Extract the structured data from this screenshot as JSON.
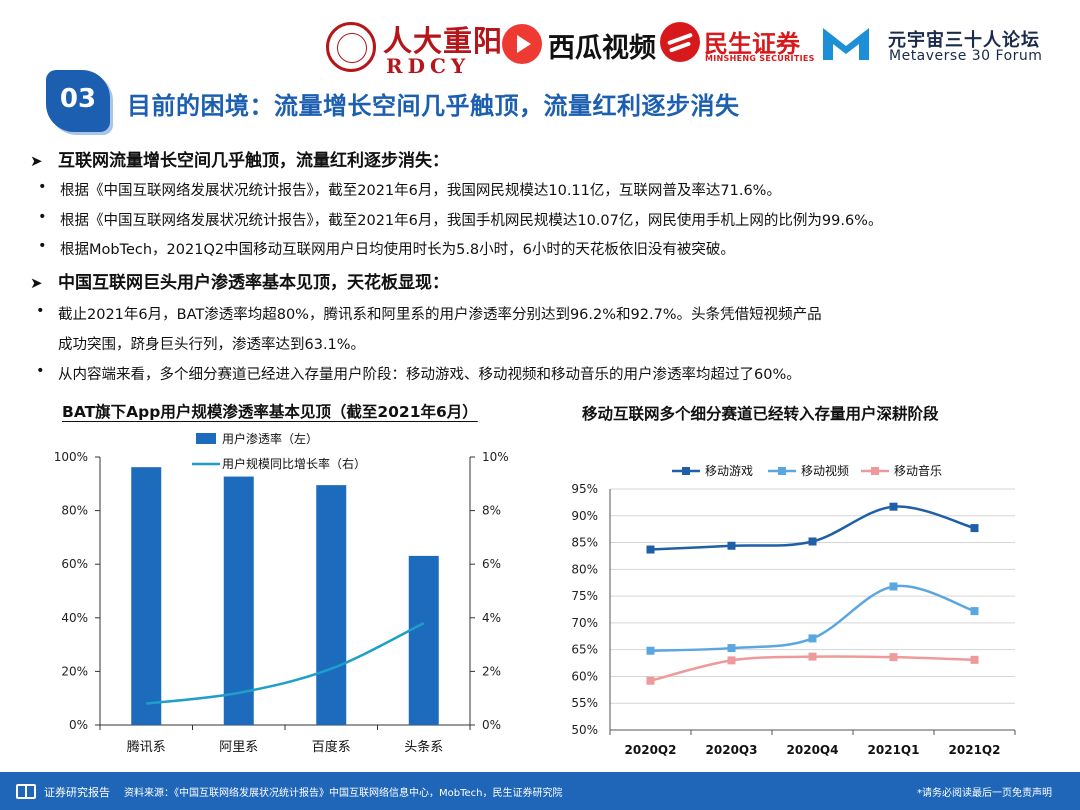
{
  "logos": {
    "rdcy_cn": "人大重阳",
    "rdcy_en": "RDCY",
    "xigua": "西瓜视频",
    "minsheng_cn": "民生证券",
    "minsheng_en": "MINSHENG SECURITIES",
    "forum_cn": "元宇宙三十人论坛",
    "forum_en": "Metaverse 30 Forum"
  },
  "section_number": "03",
  "title": "目前的困境：流量增长空间几乎触顶，流量红利逐步消失",
  "sections": [
    {
      "heading": "互联网流量增长空间几乎触顶，流量红利逐步消失：",
      "bullets": [
        "根据《中国互联网络发展状况统计报告》，截至2021年6月，我国网民规模达10.11亿，互联网普及率达71.6%。",
        "根据《中国互联网络发展状况统计报告》，截至2021年6月，我国手机网民规模达10.07亿，网民使用手机上网的比例为99.6%。",
        "根据MobTech，2021Q2中国移动互联网用户日均使用时长为5.8小时，6小时的天花板依旧没有被突破。"
      ]
    },
    {
      "heading": "中国互联网巨头用户渗透率基本见顶，天花板显现：",
      "bullets": [
        "截止2021年6月，BAT渗透率均超80%，腾讯系和阿里系的用户渗透率分别达到96.2%和92.7%。头条凭借短视频产品",
        "成功突围，跻身巨头行列，渗透率达到63.1%。",
        "从内容端来看，多个细分赛道已经进入存量用户阶段：移动游戏、移动视频和移动音乐的用户渗透率均超过了60%。"
      ]
    }
  ],
  "chart_data": [
    {
      "type": "bar",
      "title": "BAT旗下App用户规模渗透率基本见顶（截至2021年6月）",
      "categories": [
        "腾讯系",
        "阿里系",
        "百度系",
        "头条系"
      ],
      "series": [
        {
          "name": "用户渗透率（左）",
          "type": "bar",
          "axis": "left",
          "values": [
            96.2,
            92.7,
            89.5,
            63.1
          ],
          "color": "#1c6bbd"
        },
        {
          "name": "用户规模同比增长率（右）",
          "type": "line",
          "axis": "right",
          "values": [
            0.8,
            1.2,
            2.1,
            3.8
          ],
          "color": "#1f9fc8"
        }
      ],
      "y_left": {
        "range": [
          0,
          100
        ],
        "ticks": [
          "0%",
          "20%",
          "40%",
          "60%",
          "80%",
          "100%"
        ]
      },
      "y_right": {
        "range": [
          0,
          10
        ],
        "ticks": [
          "0%",
          "2%",
          "4%",
          "6%",
          "8%",
          "10%"
        ]
      },
      "legend": "top"
    },
    {
      "type": "line",
      "title": "移动互联网多个细分赛道已经转入存量用户深耕阶段",
      "categories": [
        "2020Q2",
        "2020Q3",
        "2020Q4",
        "2021Q1",
        "2021Q2"
      ],
      "series": [
        {
          "name": "移动游戏",
          "values": [
            83.7,
            84.4,
            85.2,
            91.7,
            87.7
          ],
          "color": "#1f5fa8"
        },
        {
          "name": "移动视频",
          "values": [
            64.8,
            65.3,
            67.1,
            76.8,
            72.2
          ],
          "color": "#5aa7e0"
        },
        {
          "name": "移动音乐",
          "values": [
            59.2,
            63.0,
            63.7,
            63.6,
            63.1
          ],
          "color": "#ee9a9a"
        }
      ],
      "y": {
        "range": [
          50,
          95
        ],
        "ticks": [
          "50%",
          "55%",
          "60%",
          "65%",
          "70%",
          "75%",
          "80%",
          "85%",
          "90%",
          "95%"
        ]
      },
      "grid": true,
      "legend": "top"
    }
  ],
  "footer": {
    "label": "证券研究报告",
    "source": "资料来源：《中国互联网络发展状况统计报告》中国互联网络信息中心，MobTech，民生证券研究院",
    "disclaimer": "*请务必阅读最后一页免责声明"
  }
}
